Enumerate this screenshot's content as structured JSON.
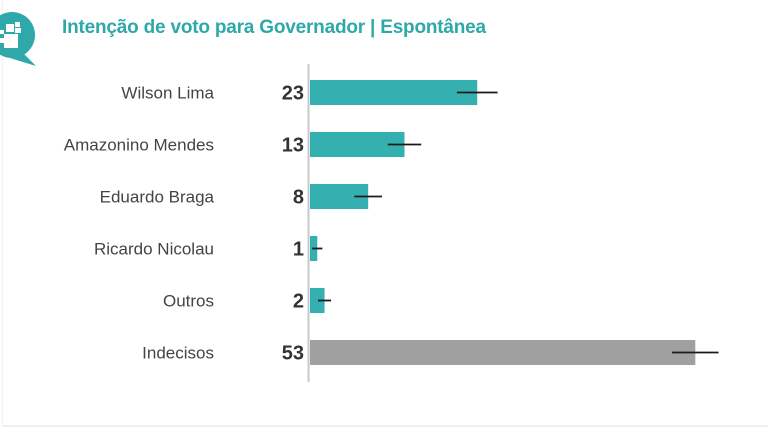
{
  "header": {
    "title": "Intenção de voto para Governador | Espontânea",
    "logo_icon": "speech-bubble-squares-icon"
  },
  "colors": {
    "accent": "#2fa8a9",
    "bar_candidate": "#35b0b1",
    "bar_undecided": "#a0a0a0",
    "error_bar": "#1a1a1a",
    "axis": "#c8c8c8"
  },
  "chart_data": {
    "type": "bar",
    "orientation": "horizontal",
    "title": "Intenção de voto para Governador | Espontânea",
    "xlabel": "",
    "ylabel": "",
    "xlim": [
      0,
      56
    ],
    "grid": false,
    "legend": "none",
    "categories": [
      "Wilson Lima",
      "Amazonino Mendes",
      "Eduardo Braga",
      "Ricardo Nicolau",
      "Outros",
      "Indecisos"
    ],
    "values": [
      23,
      13,
      8,
      1,
      2,
      53
    ],
    "value_labels": [
      "23",
      "13",
      "8",
      "1",
      "2",
      "53"
    ],
    "error_margins": [
      2.8,
      2.3,
      1.9,
      0.7,
      0.9,
      3.2
    ],
    "bar_kinds": [
      "candidate",
      "candidate",
      "candidate",
      "candidate",
      "candidate",
      "undecided"
    ]
  }
}
